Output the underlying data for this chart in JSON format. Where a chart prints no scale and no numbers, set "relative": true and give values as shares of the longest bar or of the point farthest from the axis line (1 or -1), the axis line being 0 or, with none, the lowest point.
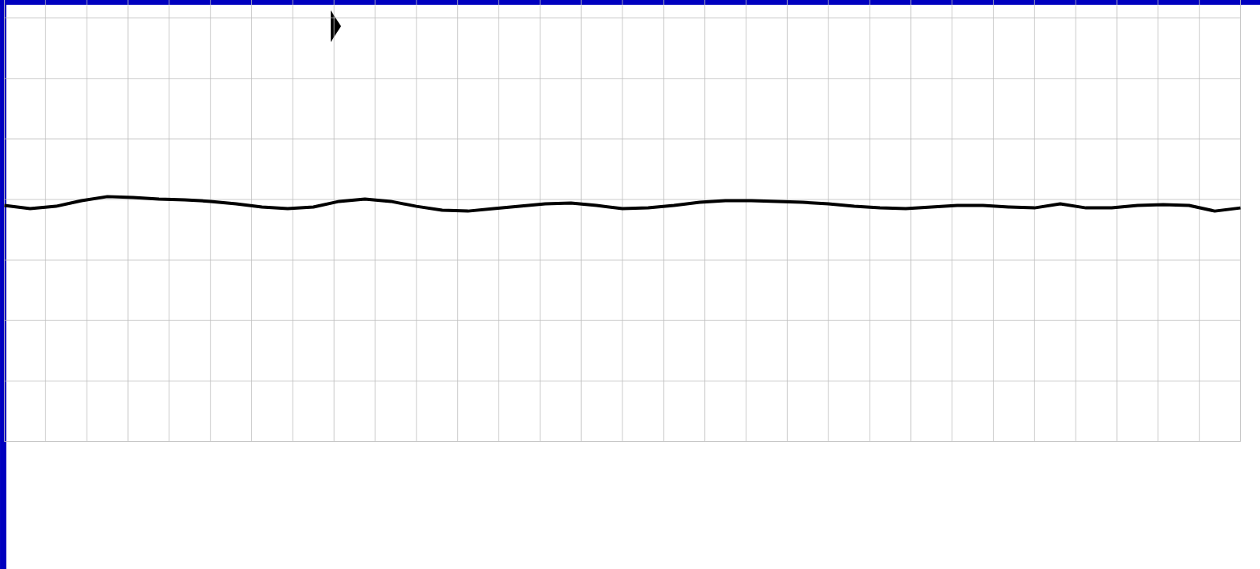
{
  "chart_data": {
    "type": "line",
    "relative": true,
    "grid": true,
    "color": "#000000",
    "categories": [
      null,
      null,
      null,
      null,
      null,
      null,
      null,
      null,
      null,
      null,
      null,
      null,
      null,
      null,
      null,
      null,
      null,
      null,
      null,
      null,
      null,
      null,
      null,
      null,
      null,
      null,
      null,
      null,
      null,
      null,
      null,
      null,
      null,
      null,
      null,
      null,
      null,
      null,
      null,
      null,
      null,
      null,
      null,
      null,
      null,
      null,
      null,
      null,
      null
    ],
    "values": [
      0.39,
      0.17,
      0.33,
      0.72,
      1,
      0.94,
      0.83,
      0.78,
      0.67,
      0.5,
      0.28,
      0.17,
      0.28,
      0.67,
      0.83,
      0.67,
      0.33,
      0.06,
      0,
      0.17,
      0.33,
      0.5,
      0.56,
      0.39,
      0.17,
      0.22,
      0.39,
      0.61,
      0.72,
      0.72,
      0.67,
      0.61,
      0.5,
      0.33,
      0.22,
      0.17,
      0.28,
      0.39,
      0.39,
      0.28,
      0.22,
      0.5,
      0.22,
      0.22,
      0.39,
      0.44,
      0.39,
      0,
      0.22
    ]
  }
}
